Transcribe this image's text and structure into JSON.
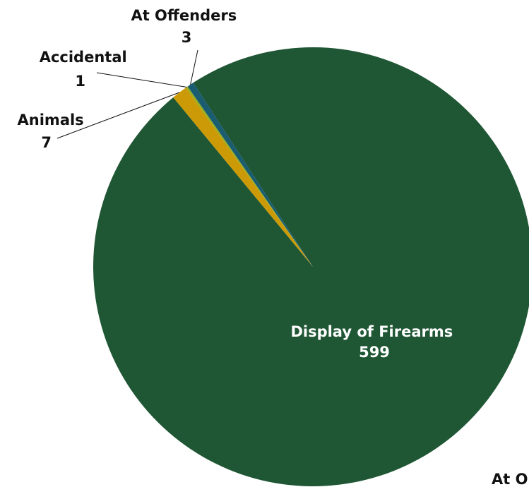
{
  "chart_data": {
    "type": "pie",
    "slices": [
      {
        "name": "Display of Firearms",
        "value": 599,
        "color": "#1f5634"
      },
      {
        "name": "Animals",
        "value": 7,
        "color": "#cc9a06"
      },
      {
        "name": "Accidental",
        "value": 1,
        "color": "#9aae1e"
      },
      {
        "name": "At Offenders",
        "value": 3,
        "color": "#1a5c70"
      }
    ],
    "truncated_label": "At O",
    "legend": "none",
    "data_labels": true
  }
}
